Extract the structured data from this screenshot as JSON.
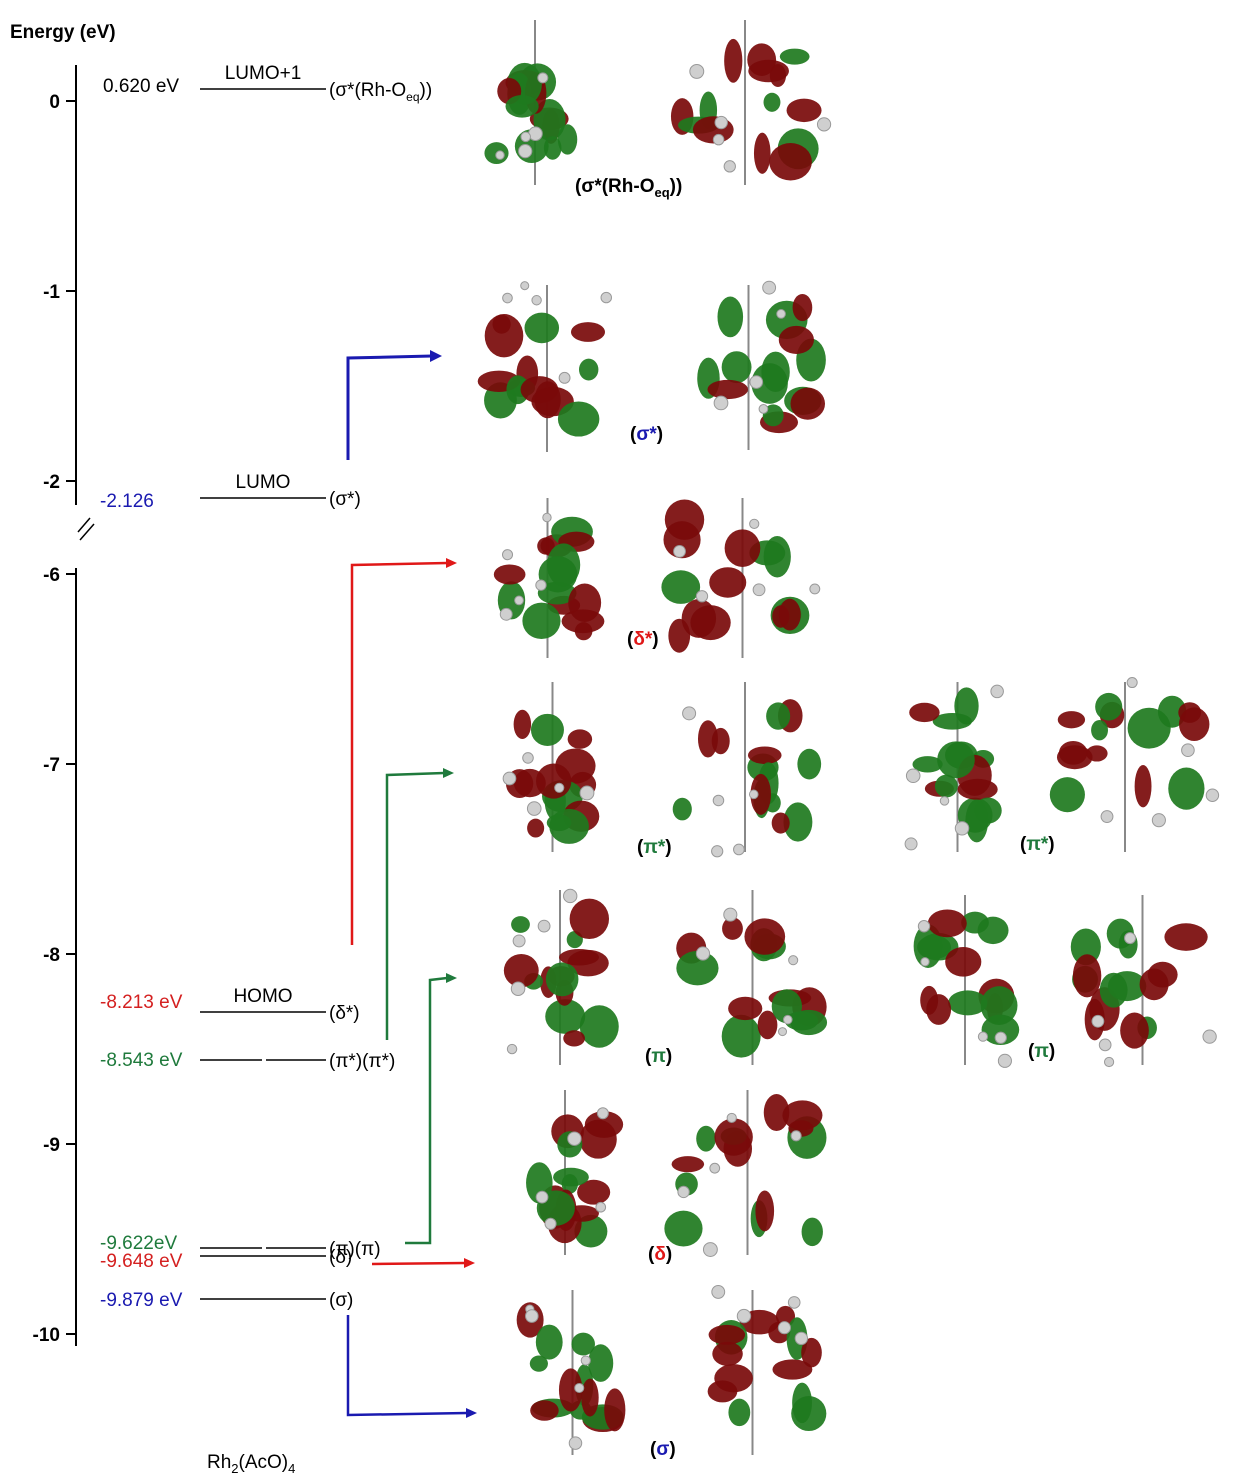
{
  "axis": {
    "title": "Energy (eV)",
    "ticks": [
      0,
      -1,
      -2,
      -6,
      -7,
      -8,
      -9,
      -10
    ]
  },
  "levels": [
    {
      "energy": "0.620 eV",
      "name": "LUMO+1",
      "label": "(σ*(Rh-O",
      "label_sub": "eq",
      "label_end": "))",
      "color": "#000000"
    },
    {
      "energy": "-2.126",
      "name": "LUMO",
      "label": "(σ*)",
      "color": "#1a1ab0"
    },
    {
      "energy": "-8.213 eV",
      "name": "HOMO",
      "label": "(δ*)",
      "color": "#d42020"
    },
    {
      "energy": "-8.543 eV",
      "label": "(π*)(π*)",
      "color": "#1f7a3c"
    },
    {
      "energy": "-9.622eV",
      "label": "(π)(π)",
      "color": "#1f7a3c"
    },
    {
      "energy": "-9.648 eV",
      "label": "(δ)",
      "color": "#d42020"
    },
    {
      "energy": "-9.879 eV",
      "label": "(σ)",
      "color": "#1a1ab0"
    }
  ],
  "compound": {
    "base": "Rh",
    "sub1": "2",
    "mid": "(AcO)",
    "sub2": "4"
  },
  "orbitals": [
    {
      "open": "(",
      "symbol": "σ*(Rh-O",
      "sub": "eq",
      "close": "))",
      "color": "#000000"
    },
    {
      "open": "(",
      "symbol": "σ*",
      "close": ")",
      "color": "#1a1ab0"
    },
    {
      "open": "(",
      "symbol": "δ*",
      "close": ")",
      "color": "#e01818"
    },
    {
      "open": "(",
      "symbol": "π*",
      "close": ")",
      "color": "#1f7a3c"
    },
    {
      "open": "(",
      "symbol": "π*",
      "close": ")",
      "color": "#1f7a3c"
    },
    {
      "open": "(",
      "symbol": "π",
      "close": ")",
      "color": "#1f7a3c"
    },
    {
      "open": "(",
      "symbol": "π",
      "close": ")",
      "color": "#1f7a3c"
    },
    {
      "open": "(",
      "symbol": "δ",
      "close": ")",
      "color": "#e01818"
    },
    {
      "open": "(",
      "symbol": "σ",
      "close": ")",
      "color": "#1a1ab0"
    }
  ]
}
